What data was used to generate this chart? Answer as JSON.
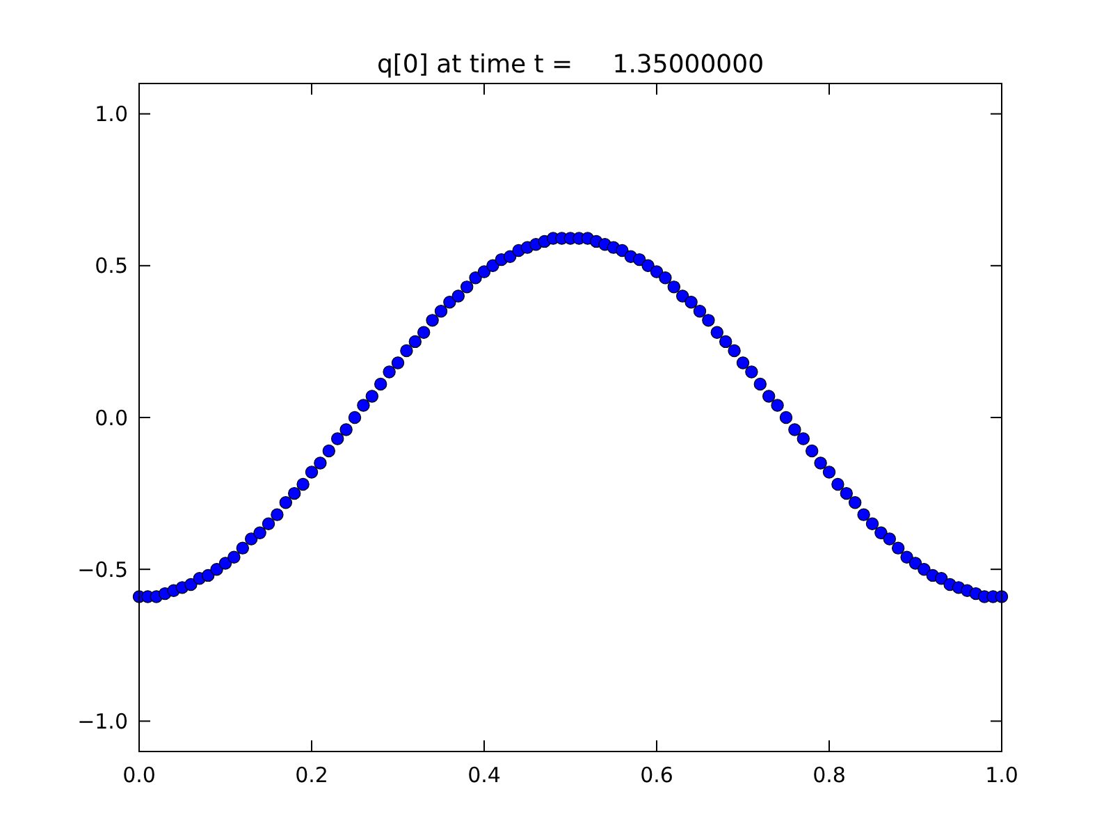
{
  "chart_data": {
    "type": "scatter",
    "title": "q[0] at time t =     1.35000000",
    "marker": "circle",
    "xlim": [
      0,
      1
    ],
    "ylim": [
      -1.1,
      1.1
    ],
    "xticks": [
      {
        "value": 0,
        "label": "0.0"
      },
      {
        "value": 0.2,
        "label": "0.2"
      },
      {
        "value": 0.4,
        "label": "0.4"
      },
      {
        "value": 0.6,
        "label": "0.6"
      },
      {
        "value": 0.8,
        "label": "0.8"
      },
      {
        "value": 1,
        "label": "1.0"
      }
    ],
    "yticks": [
      {
        "value": -1,
        "label": "−1.0"
      },
      {
        "value": -0.5,
        "label": "−0.5"
      },
      {
        "value": 0,
        "label": "0.0"
      },
      {
        "value": 0.5,
        "label": "0.5"
      },
      {
        "value": 1,
        "label": "1.0"
      }
    ],
    "x": [
      0,
      0.01,
      0.02,
      0.03,
      0.04,
      0.05,
      0.06,
      0.07,
      0.08,
      0.09,
      0.1,
      0.11,
      0.12,
      0.13,
      0.14,
      0.15,
      0.16,
      0.17,
      0.18,
      0.19,
      0.2,
      0.21,
      0.22,
      0.23,
      0.24,
      0.25,
      0.26,
      0.27,
      0.28,
      0.29,
      0.3,
      0.31,
      0.32,
      0.33,
      0.34,
      0.35,
      0.36,
      0.37,
      0.38,
      0.39,
      0.4,
      0.41,
      0.42,
      0.43,
      0.44,
      0.45,
      0.46,
      0.47,
      0.48,
      0.49,
      0.5,
      0.51,
      0.52,
      0.53,
      0.54,
      0.55,
      0.56,
      0.57,
      0.58,
      0.59,
      0.6,
      0.61,
      0.62,
      0.63,
      0.64,
      0.65,
      0.66,
      0.67,
      0.68,
      0.69,
      0.7,
      0.71,
      0.72,
      0.73,
      0.74,
      0.75,
      0.76,
      0.77,
      0.78,
      0.79,
      0.8,
      0.81,
      0.82,
      0.83,
      0.84,
      0.85,
      0.86,
      0.87,
      0.88,
      0.89,
      0.9,
      0.91,
      0.92,
      0.93,
      0.94,
      0.95,
      0.96,
      0.97,
      0.98,
      0.99,
      1
    ],
    "series": [
      {
        "color": "#0000ff",
        "values": [
          -0.59,
          -0.59,
          -0.59,
          -0.58,
          -0.57,
          -0.56,
          -0.55,
          -0.53,
          -0.52,
          -0.5,
          -0.48,
          -0.46,
          -0.43,
          -0.4,
          -0.38,
          -0.35,
          -0.32,
          -0.28,
          -0.25,
          -0.22,
          -0.18,
          -0.15,
          -0.11,
          -0.07,
          -0.04,
          0,
          0.04,
          0.07,
          0.11,
          0.15,
          0.18,
          0.22,
          0.25,
          0.28,
          0.32,
          0.35,
          0.38,
          0.4,
          0.43,
          0.46,
          0.48,
          0.5,
          0.52,
          0.53,
          0.55,
          0.56,
          0.57,
          0.58,
          0.59,
          0.59,
          0.59,
          0.59,
          0.59,
          0.58,
          0.57,
          0.56,
          0.55,
          0.53,
          0.52,
          0.5,
          0.48,
          0.46,
          0.43,
          0.4,
          0.38,
          0.35,
          0.32,
          0.28,
          0.25,
          0.22,
          0.18,
          0.15,
          0.11,
          0.07,
          0.04,
          0,
          -0.04,
          -0.07,
          -0.11,
          -0.15,
          -0.18,
          -0.22,
          -0.25,
          -0.28,
          -0.32,
          -0.35,
          -0.38,
          -0.4,
          -0.43,
          -0.46,
          -0.48,
          -0.5,
          -0.52,
          -0.53,
          -0.55,
          -0.56,
          -0.57,
          -0.58,
          -0.59,
          -0.59,
          -0.59
        ]
      }
    ]
  }
}
